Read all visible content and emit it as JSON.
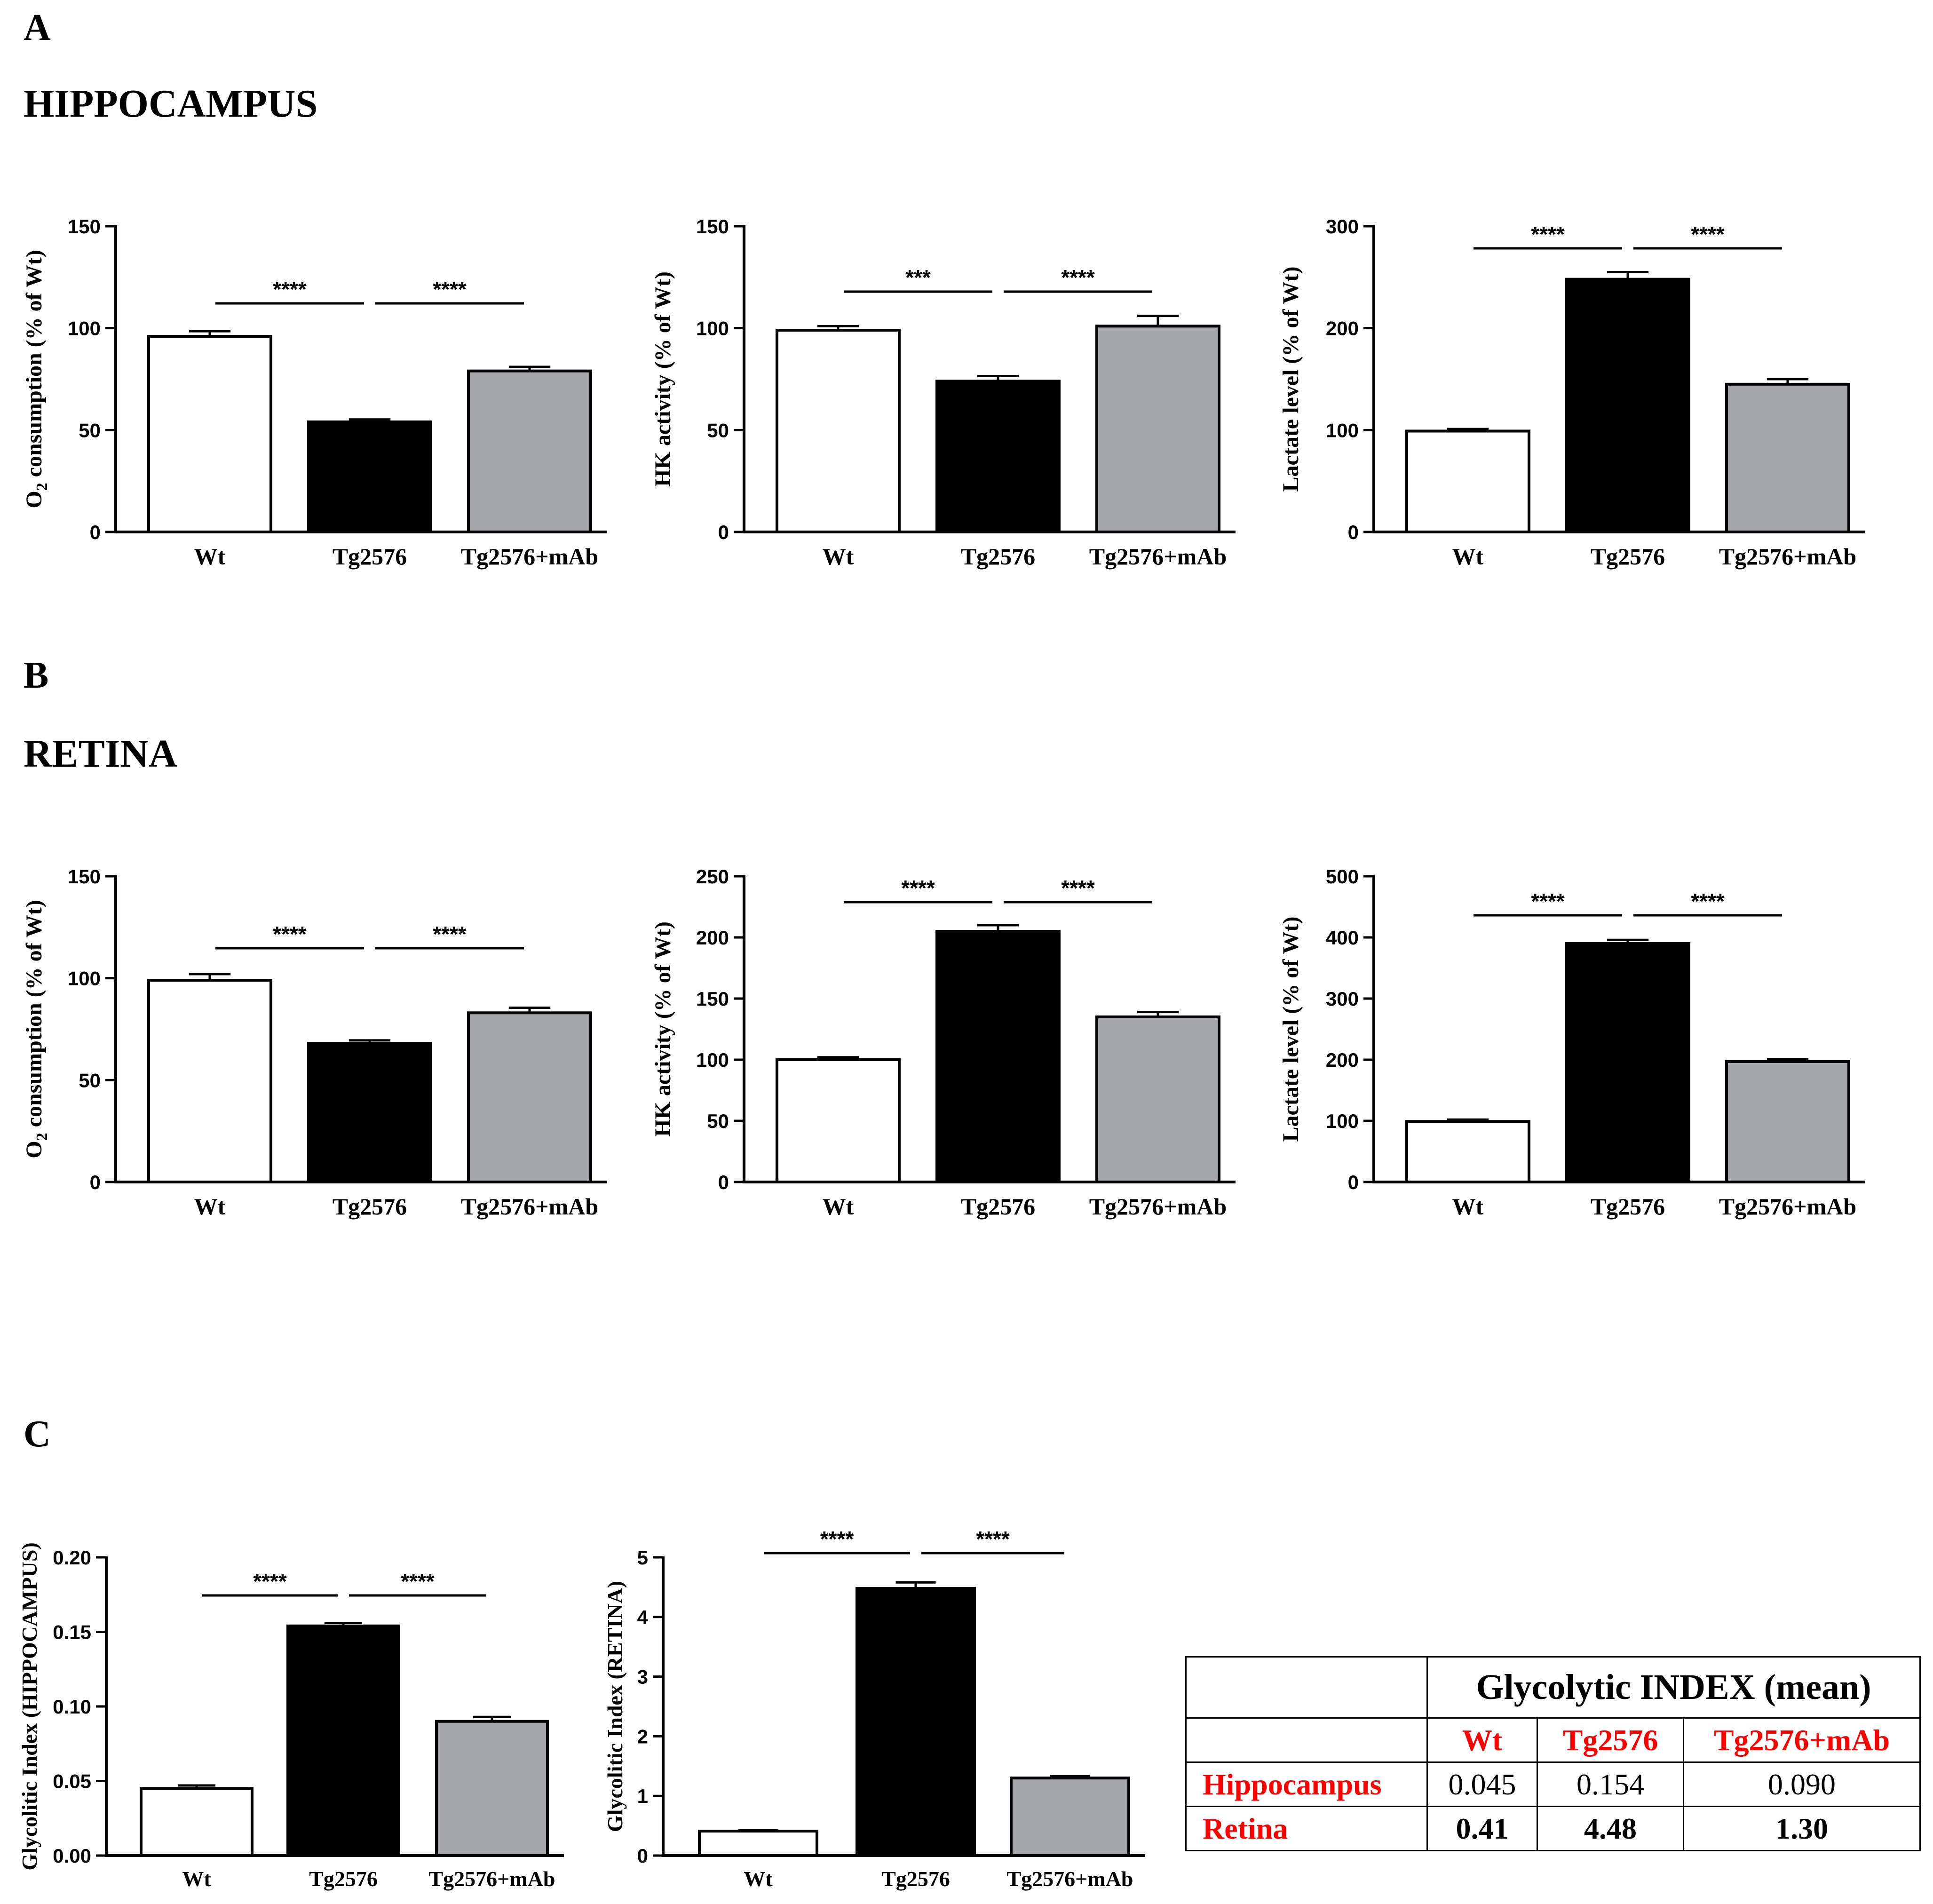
{
  "panels": {
    "A": {
      "letter": "A",
      "title": "HIPPOCAMPUS"
    },
    "B": {
      "letter": "B",
      "title": "RETINA"
    },
    "C": {
      "letter": "C"
    }
  },
  "colors": {
    "Wt": "#ffffff",
    "Tg2576": "#000000",
    "Tg2576+mAb": "#a7a8ab",
    "table_red": "#ff0000"
  },
  "chart_data": [
    {
      "id": "A-o2",
      "type": "bar",
      "panel": "A",
      "ylabel": "O2 consumption (% of Wt)",
      "ylabel_main": "O",
      "ylabel_sub": "2",
      "ylabel_rest": " consumption (% of Wt)",
      "categories": [
        "Wt",
        "Tg2576",
        "Tg2576+mAb"
      ],
      "values": [
        96,
        54,
        79
      ],
      "errors": [
        2.5,
        1.2,
        2
      ],
      "ylim": [
        0,
        150
      ],
      "ticks": [
        "0",
        "50",
        "100",
        "150"
      ],
      "significance": [
        {
          "from": 0,
          "to": 1,
          "label": "****"
        },
        {
          "from": 1,
          "to": 2,
          "label": "****"
        }
      ]
    },
    {
      "id": "A-hk",
      "type": "bar",
      "panel": "A",
      "ylabel": "HK activity (% of Wt)",
      "categories": [
        "Wt",
        "Tg2576",
        "Tg2576+mAb"
      ],
      "values": [
        99,
        74,
        101
      ],
      "errors": [
        2,
        2.5,
        5
      ],
      "ylim": [
        0,
        150
      ],
      "ticks": [
        "0",
        "50",
        "100",
        "150"
      ],
      "significance": [
        {
          "from": 0,
          "to": 1,
          "label": "***"
        },
        {
          "from": 1,
          "to": 2,
          "label": "****"
        }
      ]
    },
    {
      "id": "A-lactate",
      "type": "bar",
      "panel": "A",
      "ylabel": "Lactate level (% of Wt)",
      "categories": [
        "Wt",
        "Tg2576",
        "Tg2576+mAb"
      ],
      "values": [
        99,
        248,
        145
      ],
      "errors": [
        2,
        7,
        5
      ],
      "ylim": [
        0,
        300
      ],
      "ticks": [
        "0",
        "100",
        "200",
        "300"
      ],
      "significance": [
        {
          "from": 0,
          "to": 1,
          "label": "****"
        },
        {
          "from": 1,
          "to": 2,
          "label": "****"
        }
      ]
    },
    {
      "id": "B-o2",
      "type": "bar",
      "panel": "B",
      "ylabel": "O2 consumption (% of Wt)",
      "ylabel_main": "O",
      "ylabel_sub": "2",
      "ylabel_rest": " consumption (% of Wt)",
      "categories": [
        "Wt",
        "Tg2576",
        "Tg2576+mAb"
      ],
      "values": [
        99,
        68,
        83
      ],
      "errors": [
        3,
        1.5,
        2.5
      ],
      "ylim": [
        0,
        150
      ],
      "ticks": [
        "0",
        "50",
        "100",
        "150"
      ],
      "significance": [
        {
          "from": 0,
          "to": 1,
          "label": "****"
        },
        {
          "from": 1,
          "to": 2,
          "label": "****"
        }
      ]
    },
    {
      "id": "B-hk",
      "type": "bar",
      "panel": "B",
      "ylabel": "HK activity (% of Wt)",
      "categories": [
        "Wt",
        "Tg2576",
        "Tg2576+mAb"
      ],
      "values": [
        100,
        205,
        135
      ],
      "errors": [
        2,
        5,
        4
      ],
      "ylim": [
        0,
        250
      ],
      "ticks": [
        "0",
        "50",
        "100",
        "150",
        "200",
        "250"
      ],
      "significance": [
        {
          "from": 0,
          "to": 1,
          "label": "****"
        },
        {
          "from": 1,
          "to": 2,
          "label": "****"
        }
      ]
    },
    {
      "id": "B-lactate",
      "type": "bar",
      "panel": "B",
      "ylabel": "Lactate level (% of Wt)",
      "categories": [
        "Wt",
        "Tg2576",
        "Tg2576+mAb"
      ],
      "values": [
        99,
        390,
        197
      ],
      "errors": [
        3,
        6,
        4
      ],
      "ylim": [
        0,
        500
      ],
      "ticks": [
        "0",
        "100",
        "200",
        "300",
        "400",
        "500"
      ],
      "significance": [
        {
          "from": 0,
          "to": 1,
          "label": "****"
        },
        {
          "from": 1,
          "to": 2,
          "label": "****"
        }
      ]
    },
    {
      "id": "C-hippo",
      "type": "bar",
      "panel": "C",
      "ylabel": "Glycolitic Index (HIPPOCAMPUS)",
      "categories": [
        "Wt",
        "Tg2576",
        "Tg2576+mAb"
      ],
      "values": [
        0.045,
        0.154,
        0.09
      ],
      "errors": [
        0.002,
        0.002,
        0.003
      ],
      "ylim": [
        0,
        0.2
      ],
      "ticks": [
        "0.00",
        "0.05",
        "0.10",
        "0.15",
        "0.20"
      ],
      "significance": [
        {
          "from": 0,
          "to": 1,
          "label": "****"
        },
        {
          "from": 1,
          "to": 2,
          "label": "****"
        }
      ]
    },
    {
      "id": "C-retina",
      "type": "bar",
      "panel": "C",
      "ylabel": "Glycolitic Index (RETINA)",
      "categories": [
        "Wt",
        "Tg2576",
        "Tg2576+mAb"
      ],
      "values": [
        0.41,
        4.48,
        1.3
      ],
      "errors": [
        0.02,
        0.1,
        0.03
      ],
      "ylim": [
        0,
        5
      ],
      "ticks": [
        "0",
        "1",
        "2",
        "3",
        "4",
        "5"
      ],
      "significance": [
        {
          "from": 0,
          "to": 1,
          "label": "****"
        },
        {
          "from": 1,
          "to": 2,
          "label": "****"
        }
      ]
    }
  ],
  "table": {
    "title": "Glycolytic INDEX (mean)",
    "columns": [
      "Wt",
      "Tg2576",
      "Tg2576+mAb"
    ],
    "rows": [
      {
        "label": "Hippocampus",
        "values": [
          "0.045",
          "0.154",
          "0.090"
        ]
      },
      {
        "label": "Retina",
        "values": [
          "0.41",
          "4.48",
          "1.30"
        ]
      }
    ]
  }
}
